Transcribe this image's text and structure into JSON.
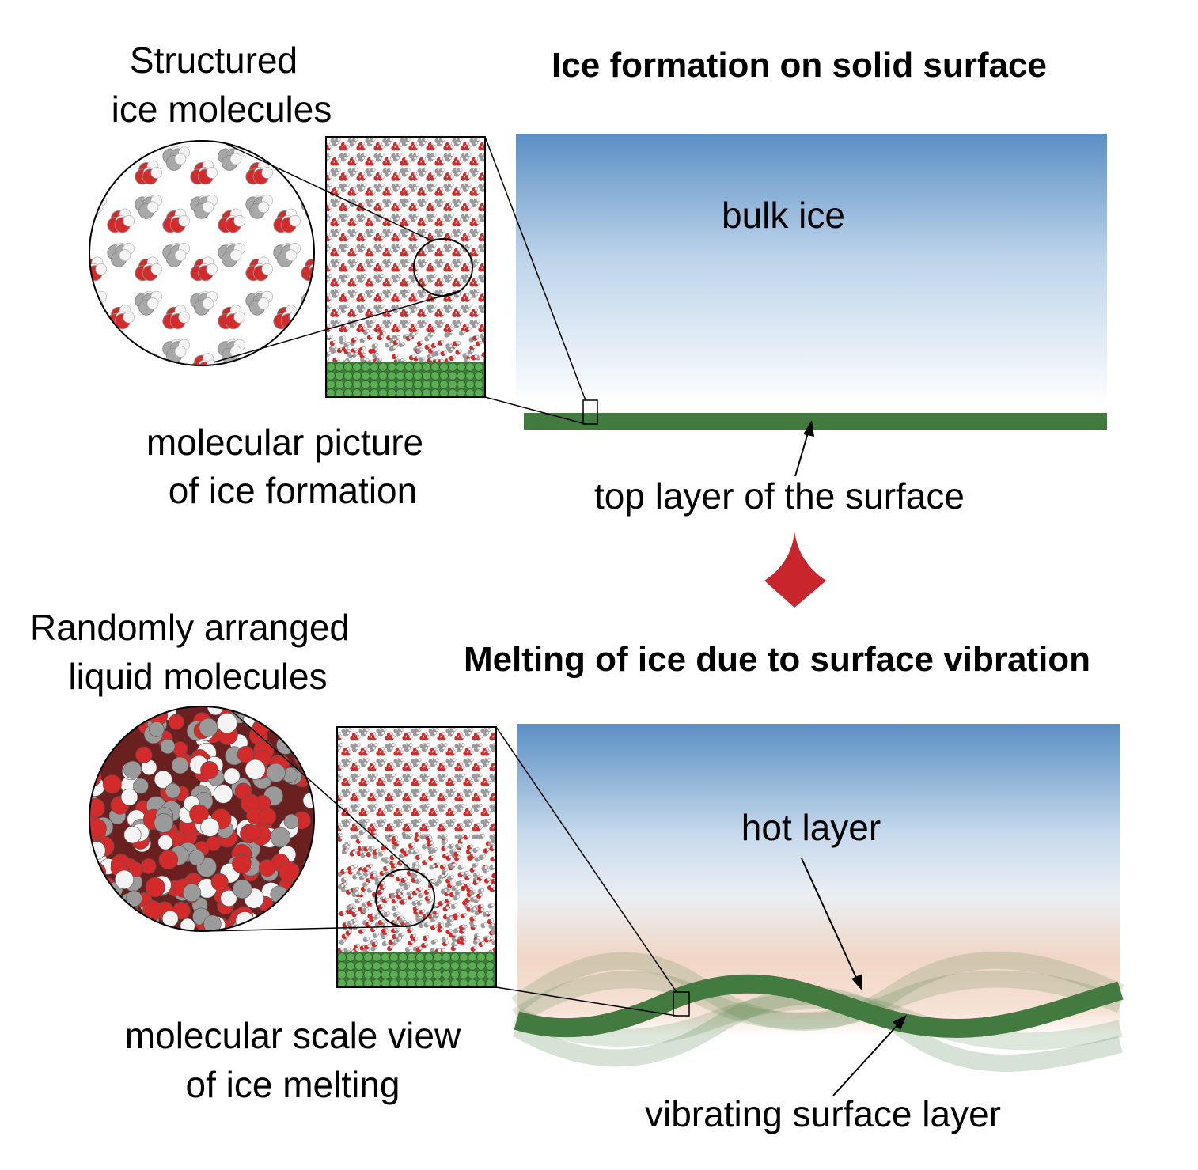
{
  "top_panel": {
    "title": "Ice formation on solid surface",
    "zoom_label_line1": "Structured",
    "zoom_label_line2": "ice molecules",
    "caption_line1": "molecular picture",
    "caption_line2": "of ice formation",
    "bulk_label": "bulk ice",
    "surface_label": "top layer of the surface"
  },
  "bottom_panel": {
    "title": "Melting of ice due to surface vibration",
    "zoom_label_line1": "Randomly arranged",
    "zoom_label_line2": "liquid molecules",
    "caption_line1": "molecular scale view",
    "caption_line2": "of ice melting",
    "hot_label": "hot layer",
    "surface_label": "vibrating surface layer"
  },
  "colors": {
    "ice_top": "#5b8fc4",
    "ice_bottom": "#ffffff",
    "hot_layer": "#f2cfbc",
    "surface_green": "#437a3f",
    "oxygen_red": "#d42a2a",
    "hydrogen_white": "#f4f4f4",
    "arrow_red": "#c8262c"
  }
}
